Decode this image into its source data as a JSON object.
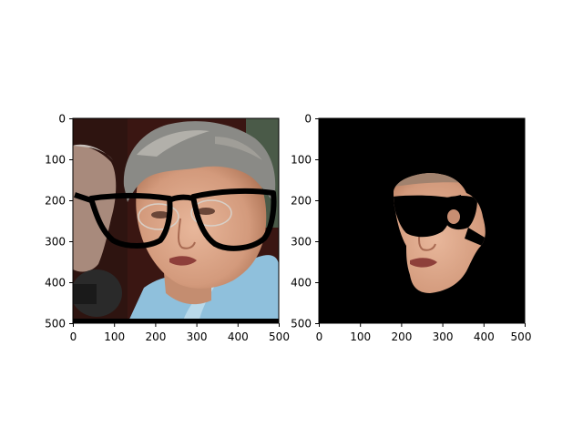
{
  "figure": {
    "panels": [
      {
        "id": "left",
        "content": "photo of woman with drawn-on black eyeglasses",
        "x_ticks": [
          "0",
          "100",
          "200",
          "300",
          "400",
          "500"
        ],
        "y_ticks": [
          "0",
          "100",
          "200",
          "300",
          "400",
          "500"
        ],
        "x_range": [
          0,
          500
        ],
        "y_range": [
          0,
          500
        ],
        "y_inverted": true
      },
      {
        "id": "right",
        "content": "segmented face region on black background",
        "x_ticks": [
          "0",
          "100",
          "200",
          "300",
          "400",
          "500"
        ],
        "y_ticks": [
          "0",
          "100",
          "200",
          "300",
          "400",
          "500"
        ],
        "x_range": [
          0,
          500
        ],
        "y_range": [
          0,
          500
        ],
        "y_inverted": true
      }
    ]
  },
  "colors": {
    "background": "#ffffff",
    "mask_background": "#000000",
    "skin": "#d9a58a",
    "hair": "#8a8a86",
    "jacket": "#8fc0dc",
    "backdrop": "#3a1612",
    "glasses": "#000000"
  }
}
